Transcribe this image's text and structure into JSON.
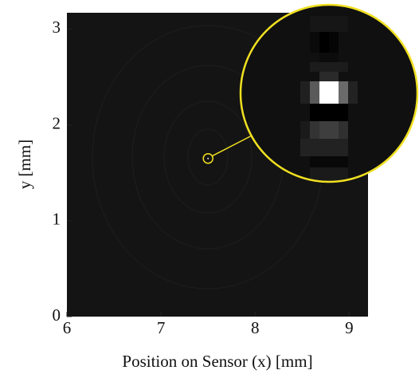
{
  "chart_data": {
    "type": "image",
    "xlabel": "Position on Sensor (x) [mm]",
    "ylabel": "y [mm]",
    "xlim": [
      6,
      9.2
    ],
    "ylim": [
      0,
      3.17
    ],
    "xticks": [
      6,
      7,
      8,
      9
    ],
    "yticks": [
      0,
      1,
      2,
      3
    ],
    "highlight": {
      "x": 7.5,
      "y": 1.65
    },
    "color": "#f0e020"
  }
}
